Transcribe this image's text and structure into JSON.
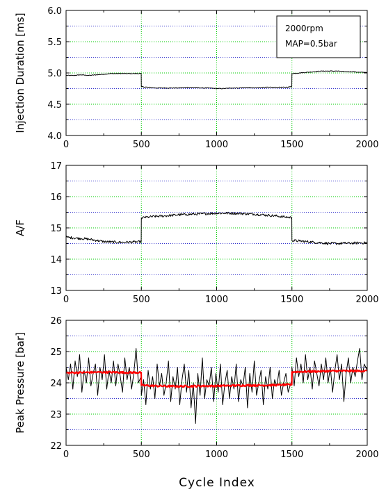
{
  "xlabel": "Cycle Index",
  "colors": {
    "grid_x": "#00cc00",
    "grid_y": "#3333cc",
    "trace": "#000000",
    "smoothed": "#ff0000"
  },
  "chart_data": [
    {
      "type": "line",
      "ylabel": "Injection Duration [ms]",
      "xlim": [
        0,
        2000
      ],
      "ylim": [
        4.0,
        6.0
      ],
      "xticks": [
        0,
        500,
        1000,
        1500,
        2000
      ],
      "yticks": [
        "4.0",
        "4.5",
        "5.0",
        "5.5",
        "6.0"
      ],
      "grid": true,
      "legend": {
        "position": "top-right",
        "lines": [
          "2000rpm",
          "MAP=0.5bar"
        ]
      },
      "series": [
        {
          "x": [
            0,
            50,
            100,
            150,
            200,
            250,
            300,
            350,
            400,
            450,
            499,
            500,
            550,
            600,
            650,
            700,
            750,
            800,
            850,
            900,
            950,
            1000,
            1050,
            1100,
            1150,
            1200,
            1250,
            1300,
            1350,
            1400,
            1450,
            1499,
            1500,
            1550,
            1600,
            1650,
            1700,
            1750,
            1800,
            1850,
            1900,
            1950,
            2000
          ],
          "y": [
            4.96,
            4.96,
            4.97,
            4.96,
            4.97,
            4.98,
            4.99,
            4.99,
            4.99,
            4.99,
            4.99,
            4.78,
            4.77,
            4.76,
            4.76,
            4.76,
            4.76,
            4.77,
            4.77,
            4.76,
            4.76,
            4.75,
            4.75,
            4.76,
            4.76,
            4.77,
            4.76,
            4.77,
            4.77,
            4.77,
            4.77,
            4.78,
            4.99,
            5.0,
            5.01,
            5.02,
            5.03,
            5.03,
            5.03,
            5.02,
            5.02,
            5.01,
            5.01
          ],
          "noise": 0.006
        }
      ]
    },
    {
      "type": "line",
      "ylabel": "A/F",
      "xlim": [
        0,
        2000
      ],
      "ylim": [
        13,
        17
      ],
      "xticks": [
        0,
        500,
        1000,
        1500,
        2000
      ],
      "yticks": [
        "13",
        "14",
        "15",
        "16",
        "17"
      ],
      "grid": true,
      "series": [
        {
          "x": [
            0,
            50,
            100,
            150,
            200,
            250,
            300,
            350,
            400,
            450,
            499,
            500,
            550,
            600,
            650,
            700,
            750,
            800,
            850,
            900,
            950,
            1000,
            1050,
            1100,
            1150,
            1200,
            1250,
            1300,
            1350,
            1400,
            1450,
            1499,
            1500,
            1550,
            1600,
            1650,
            1700,
            1750,
            1800,
            1850,
            1900,
            1950,
            2000
          ],
          "y": [
            14.7,
            14.68,
            14.66,
            14.64,
            14.6,
            14.56,
            14.55,
            14.54,
            14.54,
            14.55,
            14.55,
            15.32,
            15.35,
            15.37,
            15.38,
            15.4,
            15.42,
            15.43,
            15.44,
            15.45,
            15.46,
            15.47,
            15.47,
            15.47,
            15.46,
            15.45,
            15.44,
            15.42,
            15.4,
            15.38,
            15.35,
            15.33,
            14.6,
            14.58,
            14.56,
            14.54,
            14.52,
            14.5,
            14.5,
            14.51,
            14.51,
            14.52,
            14.52
          ],
          "noise": 0.04
        }
      ]
    },
    {
      "type": "line",
      "ylabel": "Peak Pressure [bar]",
      "xlim": [
        0,
        2000
      ],
      "ylim": [
        22,
        26
      ],
      "xticks": [
        0,
        500,
        1000,
        1500,
        2000
      ],
      "yticks": [
        "22",
        "23",
        "24",
        "25",
        "26"
      ],
      "grid": true,
      "series": [
        {
          "x": [
            0,
            15,
            30,
            45,
            60,
            75,
            90,
            105,
            120,
            135,
            150,
            165,
            180,
            195,
            210,
            225,
            240,
            255,
            270,
            285,
            300,
            315,
            330,
            345,
            360,
            375,
            390,
            405,
            420,
            435,
            450,
            465,
            480,
            499,
            500,
            515,
            530,
            545,
            560,
            575,
            590,
            605,
            620,
            635,
            650,
            665,
            680,
            695,
            710,
            725,
            740,
            755,
            770,
            785,
            800,
            815,
            830,
            845,
            860,
            875,
            890,
            905,
            920,
            935,
            950,
            965,
            980,
            995,
            1010,
            1025,
            1040,
            1055,
            1070,
            1085,
            1100,
            1115,
            1130,
            1145,
            1160,
            1175,
            1190,
            1205,
            1220,
            1235,
            1250,
            1265,
            1280,
            1295,
            1310,
            1325,
            1340,
            1355,
            1370,
            1385,
            1400,
            1415,
            1430,
            1445,
            1460,
            1475,
            1499,
            1500,
            1515,
            1530,
            1545,
            1560,
            1575,
            1590,
            1605,
            1620,
            1635,
            1650,
            1665,
            1680,
            1695,
            1710,
            1725,
            1740,
            1755,
            1770,
            1785,
            1800,
            1815,
            1830,
            1845,
            1860,
            1875,
            1890,
            1905,
            1920,
            1935,
            1950,
            1965,
            1980,
            2000
          ],
          "y": [
            24.5,
            24.1,
            24.6,
            23.8,
            24.7,
            24.2,
            24.9,
            23.7,
            24.4,
            24.0,
            24.8,
            23.9,
            24.3,
            24.6,
            23.6,
            24.5,
            24.1,
            24.9,
            23.8,
            24.4,
            24.0,
            24.7,
            23.9,
            24.6,
            24.2,
            23.7,
            24.8,
            24.1,
            24.5,
            23.8,
            24.3,
            25.1,
            24.0,
            24.2,
            23.6,
            24.1,
            23.3,
            24.4,
            23.8,
            24.2,
            23.5,
            24.6,
            23.9,
            24.3,
            23.6,
            24.0,
            24.7,
            23.4,
            24.2,
            23.8,
            24.5,
            23.3,
            24.1,
            24.6,
            23.7,
            24.4,
            23.2,
            24.0,
            22.7,
            24.3,
            23.6,
            24.8,
            23.5,
            24.1,
            23.9,
            24.5,
            23.4,
            24.3,
            23.7,
            24.6,
            23.3,
            24.0,
            24.4,
            23.5,
            24.2,
            23.8,
            24.6,
            23.4,
            24.1,
            23.9,
            24.5,
            23.2,
            24.3,
            23.7,
            24.7,
            23.6,
            24.0,
            24.4,
            23.3,
            24.2,
            23.8,
            24.5,
            23.5,
            24.1,
            23.9,
            24.4,
            23.6,
            24.0,
            24.3,
            23.7,
            24.1,
            24.5,
            23.9,
            24.8,
            24.2,
            24.6,
            24.0,
            24.9,
            24.1,
            24.5,
            23.8,
            24.7,
            24.3,
            23.9,
            24.6,
            24.1,
            24.8,
            24.0,
            24.5,
            23.7,
            24.4,
            24.9,
            24.1,
            24.6,
            23.4,
            24.3,
            24.8,
            24.0,
            24.5,
            24.2,
            24.7,
            25.1,
            24.1,
            24.6,
            24.4
          ],
          "noise": 0.0
        },
        {
          "x": [
            0,
            100,
            200,
            300,
            400,
            499,
            500,
            600,
            700,
            800,
            900,
            1000,
            1100,
            1200,
            1300,
            1400,
            1499,
            1500,
            1600,
            1700,
            1800,
            1900,
            2000
          ],
          "y": [
            24.32,
            24.33,
            24.34,
            24.34,
            24.33,
            24.33,
            23.92,
            23.9,
            23.89,
            23.89,
            23.9,
            23.9,
            23.91,
            23.92,
            23.92,
            23.93,
            23.94,
            24.35,
            24.36,
            24.37,
            24.38,
            24.38,
            24.38
          ],
          "noise": 0.03
        }
      ]
    }
  ]
}
